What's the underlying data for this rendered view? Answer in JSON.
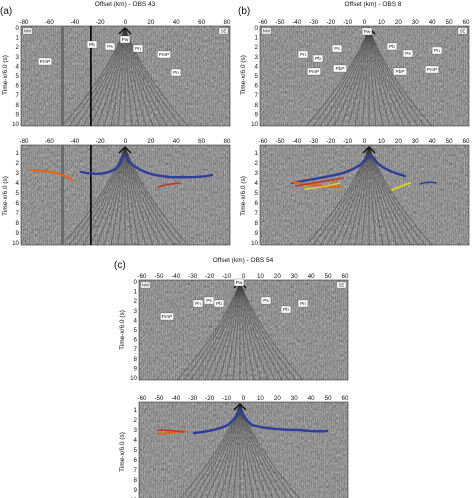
{
  "figure": {
    "panels": [
      {
        "id": "a",
        "label": "(a)",
        "title": "Offset (km) - OBS 43",
        "ylabel": "Time-x/6.0 (s)",
        "x_ticks": [
          "-80",
          "-60",
          "-40",
          "-20",
          "0",
          "20",
          "40",
          "60",
          "80"
        ],
        "y_ticks": [
          "0",
          "1",
          "2",
          "3",
          "4",
          "5",
          "6",
          "7",
          "8",
          "9",
          "10"
        ],
        "x_ticks_lower": [
          "-80",
          "-60",
          "-40",
          "-20",
          "0",
          "20",
          "40",
          "60",
          "80"
        ],
        "y_ticks_lower": [
          "1",
          "2",
          "3",
          "4",
          "5",
          "6",
          "7",
          "8",
          "9",
          "10"
        ],
        "left_tag": "NW",
        "right_tag": "SE",
        "phases": [
          "Pw",
          "Pb",
          "Ps",
          "Pn",
          "PmP",
          "PmP",
          "Pn"
        ]
      },
      {
        "id": "b",
        "label": "(b)",
        "title": "Offset (km) - OBS 8",
        "ylabel": "Time-x/6.0 (s)",
        "x_ticks": [
          "-60",
          "-50",
          "-40",
          "-30",
          "-20",
          "-10",
          "0",
          "10",
          "20",
          "30",
          "40",
          "50",
          "60"
        ],
        "y_ticks": [
          "0",
          "1",
          "2",
          "3",
          "4",
          "5",
          "6",
          "7",
          "8",
          "9",
          "10"
        ],
        "x_ticks_lower": [
          "-60",
          "-50",
          "-40",
          "-30",
          "-20",
          "-10",
          "0",
          "10",
          "20",
          "30",
          "40",
          "50",
          "60"
        ],
        "y_ticks_lower": [
          "1",
          "2",
          "3",
          "4",
          "5",
          "6",
          "7",
          "8",
          "9",
          "10"
        ],
        "left_tag": "NW",
        "right_tag": "SE",
        "phases": [
          "Pw",
          "Pn",
          "Pb",
          "Ps",
          "Pb",
          "Ps",
          "Pn",
          "PmP",
          "PbP",
          "PbP",
          "PmP"
        ]
      },
      {
        "id": "c",
        "label": "(c)",
        "title": "Offset (km) - OBS 54",
        "ylabel": "Time-x/6.0 (s)",
        "x_ticks": [
          "-60",
          "-50",
          "-40",
          "-30",
          "-20",
          "-10",
          "0",
          "10",
          "20",
          "30",
          "40",
          "50",
          "60"
        ],
        "y_ticks": [
          "0",
          "1",
          "2",
          "3",
          "4",
          "5",
          "6",
          "7",
          "8",
          "9",
          "10"
        ],
        "x_ticks_lower": [
          "-60",
          "-50",
          "-40",
          "-30",
          "-20",
          "-10",
          "0",
          "10",
          "20",
          "30",
          "40",
          "50",
          "60"
        ],
        "y_ticks_lower": [
          "1",
          "2",
          "3",
          "4",
          "5",
          "6",
          "7",
          "8",
          "9",
          "10"
        ],
        "left_tag": "NW",
        "right_tag": "SE",
        "phases": [
          "Pw",
          "Pn",
          "Pb",
          "Ps",
          "Ps",
          "Pb",
          "Pn",
          "PmP"
        ]
      }
    ],
    "colors": {
      "pick_blue": "#2d3f9a",
      "pick_orange": "#e0661c",
      "pick_red": "#c8321e",
      "pick_yellow": "#e6d21e",
      "seismic_bg": "#9c9c9c"
    }
  }
}
